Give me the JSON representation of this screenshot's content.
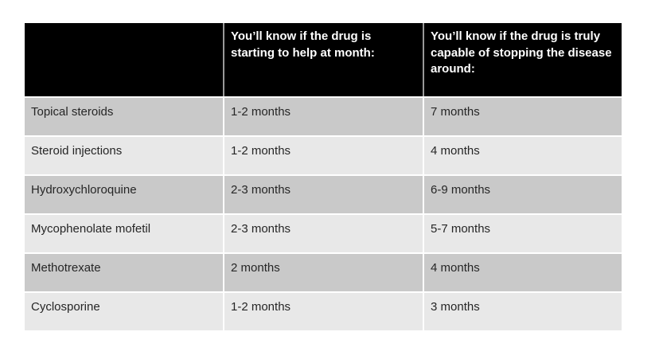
{
  "table": {
    "header": {
      "col1": "",
      "col2": "You’ll know if the drug is starting to help at month:",
      "col3": "You’ll know if the drug is truly capable of stopping the disease around:"
    },
    "rows": [
      {
        "drug": "Topical steroids",
        "start": "1-2 months",
        "stop": "7 months"
      },
      {
        "drug": "Steroid injections",
        "start": "1-2 months",
        "stop": "4 months"
      },
      {
        "drug": "Hydroxychloroquine",
        "start": "2-3 months",
        "stop": "6-9 months"
      },
      {
        "drug": "Mycophenolate mofetil",
        "start": "2-3 months",
        "stop": "5-7 months"
      },
      {
        "drug": "Methotrexate",
        "start": "2 months",
        "stop": "4 months"
      },
      {
        "drug": "Cyclosporine",
        "start": "1-2 months",
        "stop": "3 months"
      }
    ]
  },
  "colors": {
    "canvas-bg": "#ffffff",
    "header-bg": "#000000",
    "header-text": "#ffffff",
    "header-divider": "#999999",
    "row-dark": "#c9c9c9",
    "row-light": "#e8e8e8",
    "body-text": "#262626",
    "divider": "#ffffff"
  }
}
